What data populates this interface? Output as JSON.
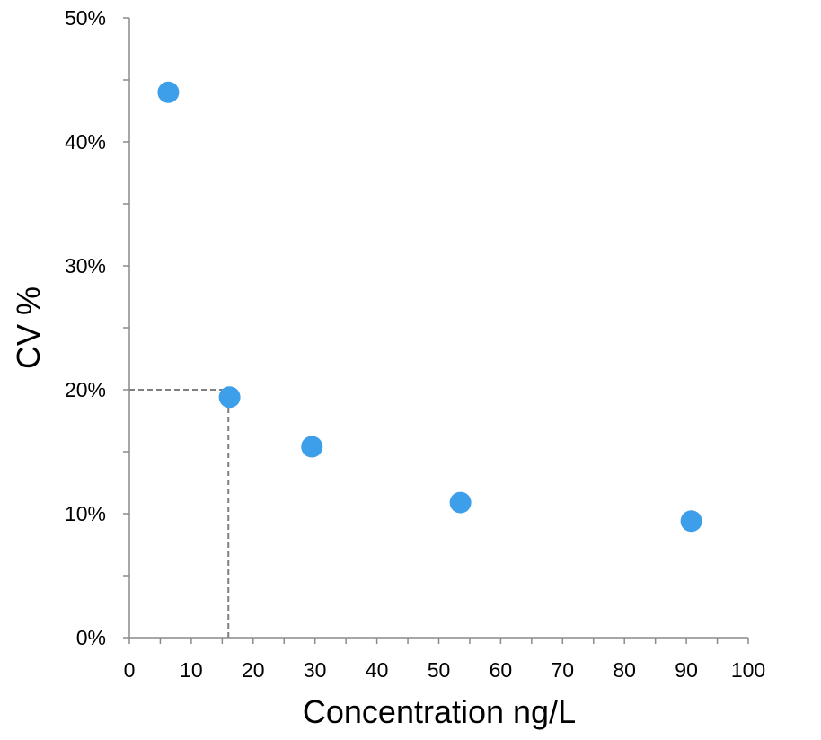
{
  "chart_data": {
    "type": "scatter",
    "title": "",
    "xlabel": "Concentration ng/L",
    "ylabel": "CV %",
    "xlim": [
      0,
      100
    ],
    "ylim": [
      0,
      50
    ],
    "x_ticks": [
      "0",
      "10",
      "20",
      "30",
      "40",
      "50",
      "60",
      "70",
      "80",
      "90",
      "100"
    ],
    "y_ticks": [
      "0%",
      "10%",
      "20%",
      "30%",
      "40%",
      "50%"
    ],
    "grid": false,
    "legend": "none",
    "series": [
      {
        "color": "#3d9ee9",
        "points": [
          {
            "x": 6.3,
            "y": 44.0
          },
          {
            "x": 16.2,
            "y": 19.4
          },
          {
            "x": 29.5,
            "y": 15.4
          },
          {
            "x": 53.5,
            "y": 10.9
          },
          {
            "x": 90.8,
            "y": 9.4
          }
        ]
      }
    ],
    "reference_lines": {
      "color": "#7f7f7f",
      "style": "dashed",
      "x": 16,
      "y": 20
    }
  }
}
